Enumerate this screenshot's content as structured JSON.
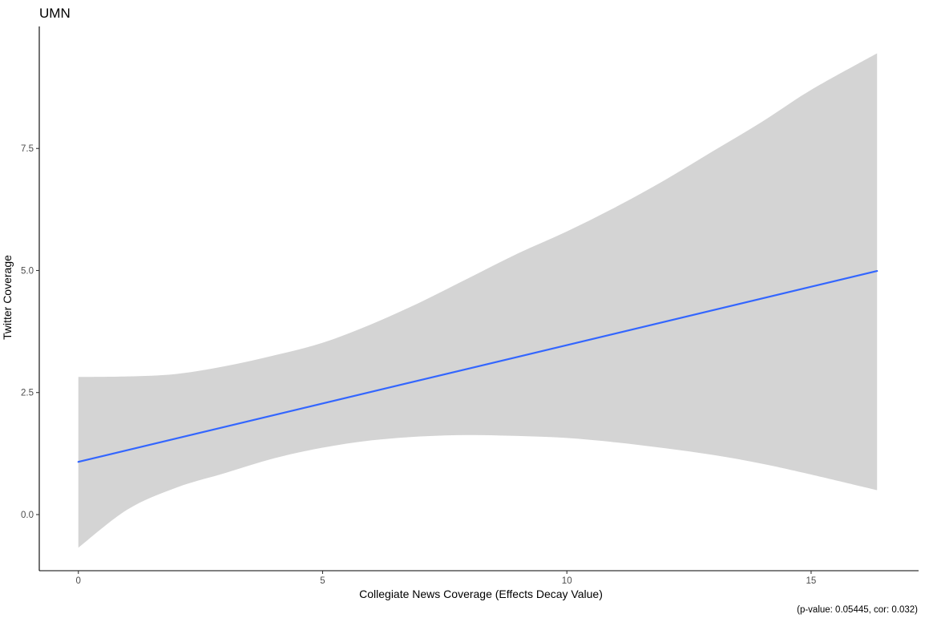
{
  "chart_data": {
    "type": "line",
    "title": "UMN",
    "xlabel": "Collegiate News Coverage (Effects Decay Value)",
    "ylabel": "Twitter Coverage",
    "caption": "(p-value: 0.05445, cor: 0.032)",
    "xlim": [
      -0.8,
      17.2
    ],
    "ylim": [
      -1.15,
      10.0
    ],
    "x_ticks": [
      0,
      5,
      10,
      15
    ],
    "x_tick_labels": [
      "0",
      "5",
      "10",
      "15"
    ],
    "y_ticks": [
      0,
      2.5,
      5,
      7.5
    ],
    "y_tick_labels": [
      "0.0",
      "2.5",
      "5.0",
      "7.5"
    ],
    "grid": false,
    "series": [
      {
        "type": "smooth-fit",
        "color": "#3366ff",
        "x": [
          0,
          16.35
        ],
        "y": [
          1.08,
          4.99
        ]
      }
    ],
    "confidence_band": {
      "color": "#d4d4d4",
      "x": [
        0,
        1,
        2,
        3,
        4,
        5,
        6,
        7,
        8,
        9,
        10,
        11,
        12,
        13,
        14,
        15,
        16.35
      ],
      "upper": [
        2.82,
        2.83,
        2.88,
        3.04,
        3.26,
        3.52,
        3.9,
        4.35,
        4.85,
        5.35,
        5.8,
        6.3,
        6.85,
        7.45,
        8.05,
        8.7,
        9.45
      ],
      "lower": [
        -0.68,
        0.1,
        0.55,
        0.85,
        1.15,
        1.37,
        1.52,
        1.6,
        1.63,
        1.61,
        1.57,
        1.48,
        1.36,
        1.22,
        1.04,
        0.82,
        0.5
      ]
    }
  }
}
